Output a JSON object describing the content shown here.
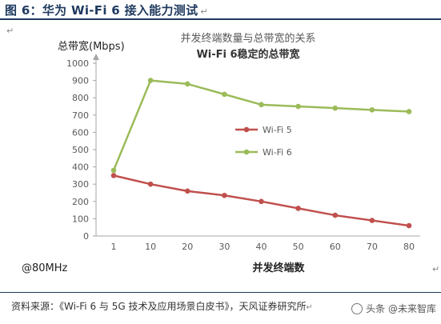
{
  "figure": {
    "title": "图 6：华为 Wi-Fi 6 接入能力测试",
    "source": "资料来源：《Wi-Fi 6 与 5G 技术及应用场景白皮书》，天风证券研究所",
    "watermark": "头条 @未来智库"
  },
  "chart_data": {
    "type": "line",
    "title": "并发终端数量与总带宽的关系",
    "subtitle": "Wi-Fi 6稳定的总带宽",
    "ylabel": "总带宽(Mbps)",
    "xlabel": "并发终端数",
    "annotation": "@80MHz",
    "x": [
      1,
      10,
      20,
      30,
      40,
      50,
      60,
      70,
      80
    ],
    "x_tick_labels": [
      "1",
      "10",
      "20",
      "30",
      "40",
      "50",
      "60",
      "70",
      "80"
    ],
    "y_ticks": [
      0,
      100,
      200,
      300,
      400,
      500,
      600,
      700,
      800,
      900,
      1000
    ],
    "ylim": [
      0,
      1000
    ],
    "grid": false,
    "legend_position": "center-right",
    "series": [
      {
        "name": "Wi-Fi 5",
        "color": "#c0504d",
        "values": [
          350,
          300,
          260,
          235,
          200,
          160,
          120,
          90,
          60
        ]
      },
      {
        "name": "Wi-Fi 6",
        "color": "#9bbb59",
        "values": [
          380,
          900,
          880,
          820,
          760,
          750,
          740,
          730,
          720
        ]
      }
    ]
  }
}
